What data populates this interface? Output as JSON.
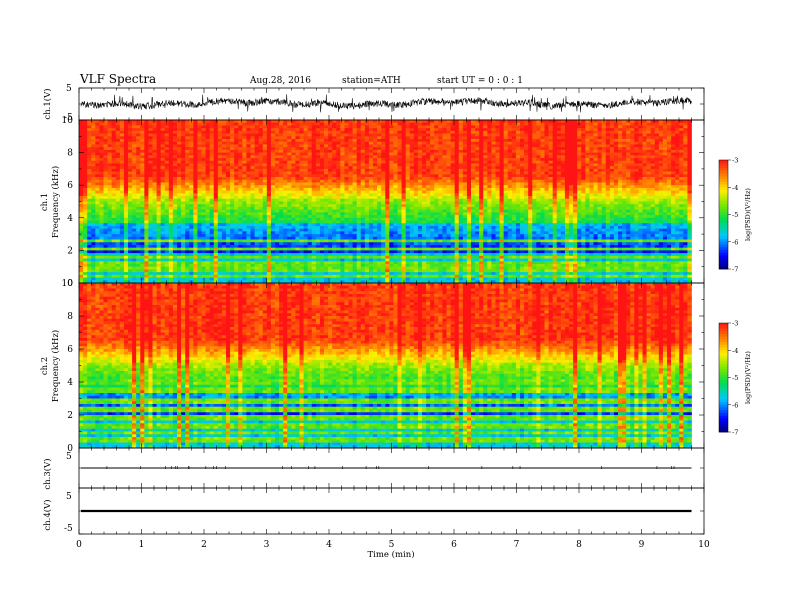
{
  "header": {
    "title": "VLF  Spectra",
    "date": "Aug.28, 2016",
    "station": "station=ATH",
    "start": "start  UT  =   0  : 0  : 1"
  },
  "chart_data": {
    "type": "heatmap",
    "xlabel": "Time  (min)",
    "xlim": [
      0,
      10
    ],
    "x_ticks": [
      "0",
      "1",
      "2",
      "3",
      "4",
      "5",
      "6",
      "7",
      "8",
      "9",
      "10"
    ],
    "data_end_min": 9.8,
    "panels": [
      {
        "id": "ch1-waveform",
        "type": "line",
        "ylabel": "ch.1(V)",
        "ylim": [
          -5,
          5
        ],
        "y_ticks": [
          "5",
          "-5"
        ],
        "baseline_v": 0.2,
        "amplitude_v": 1.5
      },
      {
        "id": "ch1-spectrogram",
        "type": "heatmap",
        "ylabel_top": "ch.1",
        "ylabel": "Frequency  (kHz)",
        "ylim": [
          0,
          10
        ],
        "y_ticks": [
          "0",
          "2",
          "4",
          "6",
          "8",
          "10"
        ],
        "bands_khz": [
          0.4,
          0.8,
          1.2,
          1.6,
          2.1,
          2.6
        ],
        "colorbar": {
          "label": "log(PSD)(V²/Hz)",
          "range": [
            -7,
            -3
          ],
          "ticks": [
            "-3",
            "-4",
            "-5",
            "-6",
            "-7"
          ]
        }
      },
      {
        "id": "ch2-spectrogram",
        "type": "heatmap",
        "ylabel_top": "ch.2",
        "ylabel": "Frequency  (kHz)",
        "ylim": [
          0,
          10
        ],
        "y_ticks": [
          "0",
          "2",
          "4",
          "6",
          "8",
          "10"
        ],
        "bands_khz": [
          0.5,
          0.9,
          1.3,
          1.8,
          2.3,
          2.8,
          3.5,
          4.0
        ],
        "colorbar": {
          "label": "log(PSD)(V²/Hz)",
          "range": [
            -7,
            -3
          ],
          "ticks": [
            "-3",
            "-4",
            "-5",
            "-6",
            "-7"
          ]
        }
      },
      {
        "id": "ch3-waveform",
        "type": "line",
        "ylabel": "ch.3(V)",
        "ylim": [
          -5,
          5
        ],
        "y_ticks": [
          "5",
          "-5"
        ],
        "baseline_v": 0.0,
        "amplitude_v": 0.05
      },
      {
        "id": "ch4-waveform",
        "type": "line",
        "ylabel": "ch.4(V)",
        "ylim": [
          -5,
          5
        ],
        "y_ticks": [
          "5",
          "-5"
        ],
        "baseline_v": 0.0,
        "amplitude_v": 0.25
      }
    ]
  },
  "colors": {
    "low": "#0000a0",
    "mid": "#00e000",
    "high": "#ff2020",
    "trace": "#000000"
  }
}
